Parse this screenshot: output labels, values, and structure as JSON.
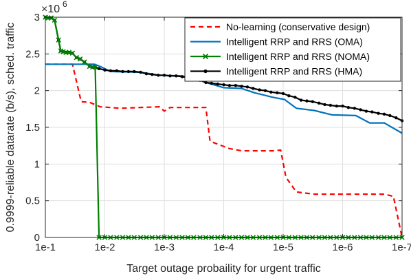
{
  "chart_data": {
    "type": "line",
    "xlabel": "Target outage probaility for urgent traffic",
    "ylabel": "0.9999-reliable datarate (b/s), sched. traffic",
    "x_scale": "log",
    "x_reversed": true,
    "xlim": [
      0.1,
      1e-07
    ],
    "ylim": [
      0,
      3000000
    ],
    "x_ticks": [
      0.1,
      0.01,
      0.001,
      0.0001,
      1e-05,
      1e-06,
      1e-07
    ],
    "x_tick_labels": [
      "1e-1",
      "1e-2",
      "1e-3",
      "1e-4",
      "1e-5",
      "1e-6",
      "1e-7"
    ],
    "y_ticks": [
      0,
      500000,
      1000000,
      1500000,
      2000000,
      2500000,
      3000000
    ],
    "y_tick_labels": [
      "0",
      "0.5",
      "1",
      "1.5",
      "2",
      "2.5",
      "3"
    ],
    "y_multiplier_label": "×10",
    "y_multiplier_exponent": "6",
    "grid": true,
    "legend_position": "top-right",
    "series": [
      {
        "name": "No-learning (conservative design)",
        "color": "#ff0000",
        "style": "dashed",
        "marker": "none",
        "points": [
          [
            0.1,
            2360000
          ],
          [
            0.035,
            2360000
          ],
          [
            0.025,
            1850000
          ],
          [
            0.018,
            1840000
          ],
          [
            0.012,
            1780000
          ],
          [
            0.0055,
            1760000
          ],
          [
            0.0012,
            1780000
          ],
          [
            0.001,
            1720000
          ],
          [
            0.0008,
            1770000
          ],
          [
            0.0002,
            1770000
          ],
          [
            0.00017,
            1310000
          ],
          [
            8e-05,
            1210000
          ],
          [
            5e-05,
            1180000
          ],
          [
            1.5e-05,
            1180000
          ],
          [
            1.1e-05,
            1190000
          ],
          [
            9e-06,
            820000
          ],
          [
            6e-06,
            620000
          ],
          [
            3e-06,
            590000
          ],
          [
            2e-07,
            590000
          ],
          [
            1.4e-07,
            560000
          ],
          [
            1e-07,
            0
          ]
        ]
      },
      {
        "name": "Intelligent RRP and RRS (OMA)",
        "color": "#0072bd",
        "style": "solid",
        "marker": "none",
        "points": [
          [
            0.1,
            2360000
          ],
          [
            0.015,
            2360000
          ],
          [
            0.012,
            2330000
          ],
          [
            0.008,
            2260000
          ],
          [
            0.0025,
            2250000
          ],
          [
            0.0012,
            2210000
          ],
          [
            0.0005,
            2200000
          ],
          [
            0.00025,
            2150000
          ],
          [
            0.00018,
            2100000
          ],
          [
            0.0001,
            2040000
          ],
          [
            5e-05,
            2030000
          ],
          [
            3e-05,
            1970000
          ],
          [
            1.5e-05,
            1910000
          ],
          [
            9.5e-06,
            1880000
          ],
          [
            6e-06,
            1760000
          ],
          [
            3e-06,
            1730000
          ],
          [
            1.5e-06,
            1670000
          ],
          [
            6e-07,
            1660000
          ],
          [
            3.5e-07,
            1560000
          ],
          [
            2e-07,
            1560000
          ],
          [
            1e-07,
            1420000
          ]
        ]
      },
      {
        "name": "Intelligent RRP and RRS (NOMA)",
        "color": "#008000",
        "style": "solid",
        "marker": "x",
        "points": [
          [
            0.1,
            3000000
          ],
          [
            0.09,
            2990000
          ],
          [
            0.08,
            2990000
          ],
          [
            0.07,
            2960000
          ],
          [
            0.06,
            2690000
          ],
          [
            0.055,
            2540000
          ],
          [
            0.05,
            2530000
          ],
          [
            0.045,
            2520000
          ],
          [
            0.04,
            2520000
          ],
          [
            0.035,
            2510000
          ],
          [
            0.03,
            2450000
          ],
          [
            0.026,
            2430000
          ],
          [
            0.022,
            2390000
          ],
          [
            0.018,
            2330000
          ],
          [
            0.016,
            2320000
          ],
          [
            0.0145,
            2320000
          ],
          [
            0.0125,
            0
          ],
          [
            0.01,
            0
          ],
          [
            0.008,
            0
          ],
          [
            0.0063,
            0
          ],
          [
            0.005,
            0
          ],
          [
            0.004,
            0
          ],
          [
            0.0032,
            0
          ],
          [
            0.0025,
            0
          ],
          [
            0.002,
            0
          ],
          [
            0.0016,
            0
          ],
          [
            0.00126,
            0
          ],
          [
            0.001,
            0
          ],
          [
            0.0008,
            0
          ],
          [
            0.00063,
            0
          ],
          [
            0.0005,
            0
          ],
          [
            0.0004,
            0
          ],
          [
            0.00032,
            0
          ],
          [
            0.00025,
            0
          ],
          [
            0.0002,
            0
          ],
          [
            0.00016,
            0
          ],
          [
            0.000126,
            0
          ],
          [
            0.0001,
            0
          ],
          [
            8e-05,
            0
          ],
          [
            6.3e-05,
            0
          ],
          [
            5e-05,
            0
          ],
          [
            4e-05,
            0
          ],
          [
            3.2e-05,
            0
          ],
          [
            2.5e-05,
            0
          ],
          [
            2e-05,
            0
          ],
          [
            1.6e-05,
            0
          ],
          [
            1.26e-05,
            0
          ],
          [
            1e-05,
            0
          ],
          [
            8e-06,
            0
          ],
          [
            6.3e-06,
            0
          ],
          [
            5e-06,
            0
          ],
          [
            4e-06,
            0
          ],
          [
            3.2e-06,
            0
          ],
          [
            2.5e-06,
            0
          ],
          [
            2e-06,
            0
          ],
          [
            1.6e-06,
            0
          ],
          [
            1.26e-06,
            0
          ],
          [
            1e-06,
            0
          ],
          [
            8e-07,
            0
          ],
          [
            6.3e-07,
            0
          ],
          [
            5e-07,
            0
          ],
          [
            4e-07,
            0
          ],
          [
            3.2e-07,
            0
          ],
          [
            2.5e-07,
            0
          ],
          [
            2e-07,
            0
          ],
          [
            1.6e-07,
            0
          ],
          [
            1.26e-07,
            0
          ],
          [
            1e-07,
            0
          ]
        ]
      },
      {
        "name": "Intelligent RRP and RRS (HMA)",
        "color": "#000000",
        "style": "solid",
        "marker": "dot",
        "points": [
          [
            0.1,
            3000000
          ],
          [
            0.09,
            2990000
          ],
          [
            0.08,
            2990000
          ],
          [
            0.07,
            2960000
          ],
          [
            0.06,
            2690000
          ],
          [
            0.055,
            2540000
          ],
          [
            0.05,
            2530000
          ],
          [
            0.045,
            2520000
          ],
          [
            0.04,
            2520000
          ],
          [
            0.035,
            2510000
          ],
          [
            0.03,
            2450000
          ],
          [
            0.026,
            2430000
          ],
          [
            0.022,
            2390000
          ],
          [
            0.018,
            2330000
          ],
          [
            0.016,
            2320000
          ],
          [
            0.0145,
            2320000
          ],
          [
            0.0125,
            2300000
          ],
          [
            0.01,
            2280000
          ],
          [
            0.008,
            2270000
          ],
          [
            0.0063,
            2270000
          ],
          [
            0.005,
            2260000
          ],
          [
            0.004,
            2260000
          ],
          [
            0.0032,
            2260000
          ],
          [
            0.0025,
            2250000
          ],
          [
            0.002,
            2230000
          ],
          [
            0.0016,
            2220000
          ],
          [
            0.00126,
            2210000
          ],
          [
            0.001,
            2210000
          ],
          [
            0.0008,
            2200000
          ],
          [
            0.00063,
            2200000
          ],
          [
            0.0005,
            2190000
          ],
          [
            0.0004,
            2180000
          ],
          [
            0.00032,
            2160000
          ],
          [
            0.00025,
            2140000
          ],
          [
            0.0002,
            2110000
          ],
          [
            0.00016,
            2100000
          ],
          [
            0.000126,
            2090000
          ],
          [
            0.0001,
            2080000
          ],
          [
            8e-05,
            2070000
          ],
          [
            6.3e-05,
            2070000
          ],
          [
            5e-05,
            2060000
          ],
          [
            4e-05,
            2050000
          ],
          [
            3.2e-05,
            2030000
          ],
          [
            2.5e-05,
            2010000
          ],
          [
            2e-05,
            2000000
          ],
          [
            1.6e-05,
            1980000
          ],
          [
            1.26e-05,
            1970000
          ],
          [
            1e-05,
            1960000
          ],
          [
            8e-06,
            1930000
          ],
          [
            6.3e-06,
            1910000
          ],
          [
            5e-06,
            1870000
          ],
          [
            4e-06,
            1860000
          ],
          [
            3.2e-06,
            1850000
          ],
          [
            2.5e-06,
            1830000
          ],
          [
            2e-06,
            1810000
          ],
          [
            1.6e-06,
            1800000
          ],
          [
            1.26e-06,
            1790000
          ],
          [
            1e-06,
            1790000
          ],
          [
            8e-07,
            1770000
          ],
          [
            6.3e-07,
            1760000
          ],
          [
            5e-07,
            1740000
          ],
          [
            4e-07,
            1720000
          ],
          [
            3.2e-07,
            1710000
          ],
          [
            2.5e-07,
            1690000
          ],
          [
            2e-07,
            1680000
          ],
          [
            1.6e-07,
            1660000
          ],
          [
            1.26e-07,
            1630000
          ],
          [
            1e-07,
            1590000
          ]
        ]
      }
    ]
  }
}
